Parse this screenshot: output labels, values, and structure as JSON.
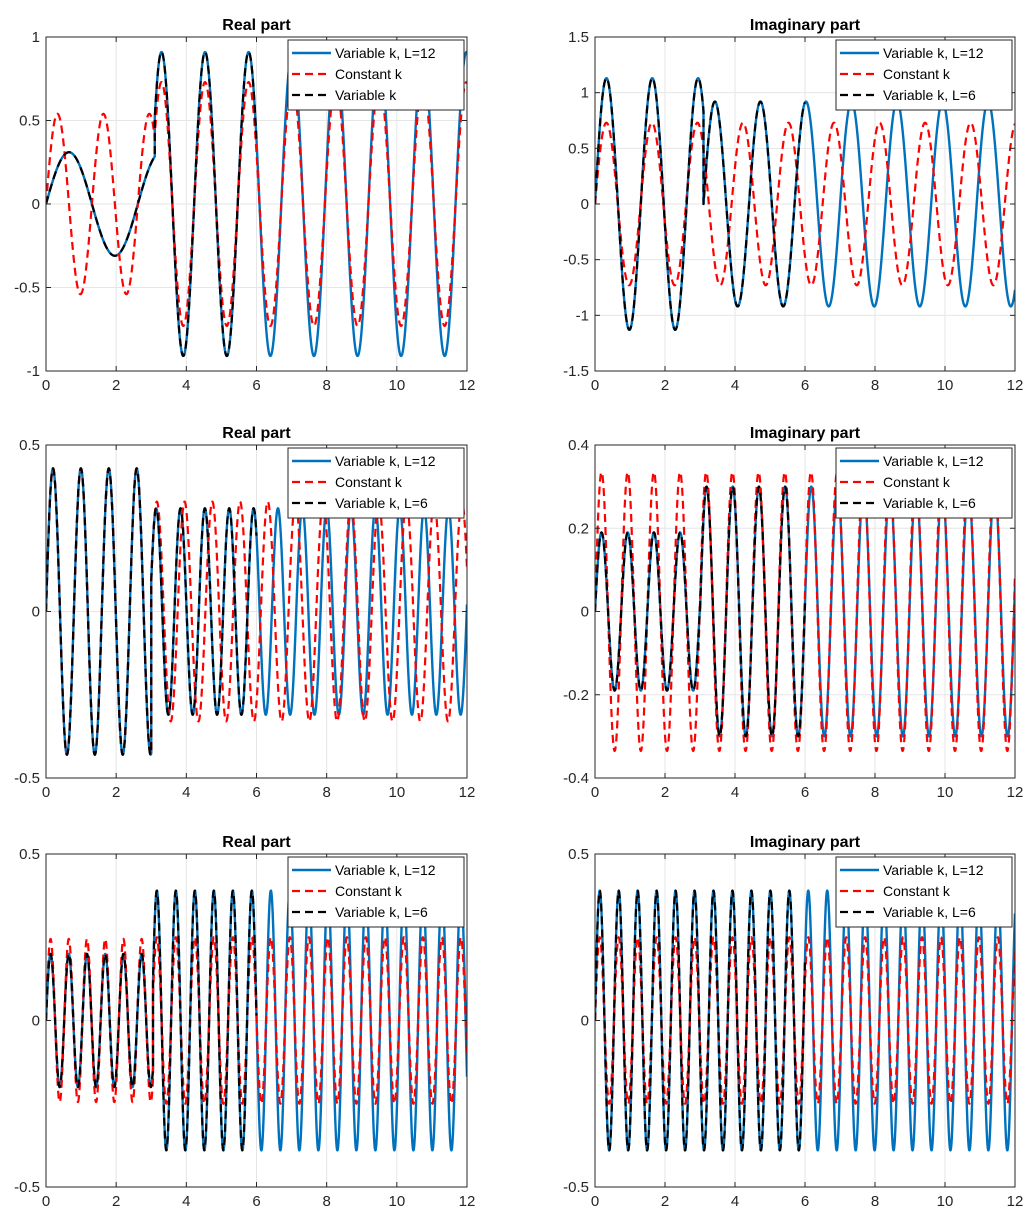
{
  "chart_data": [
    {
      "type": "line",
      "title": "Real part",
      "xlabel": "",
      "ylabel": "",
      "xlim": [
        0,
        12
      ],
      "ylim": [
        -1,
        1
      ],
      "xticks": [
        "0",
        "2",
        "4",
        "6",
        "8",
        "10",
        "12"
      ],
      "yticks": [
        "-1",
        "-0.5",
        "0",
        "0.5",
        "1"
      ],
      "ytick_values": [
        -1,
        -0.5,
        0,
        0.5,
        1
      ],
      "grid": true,
      "legend_position": "top-right",
      "series": [
        {
          "name": "Variable k, L=12",
          "color": "#0072BD",
          "style": "solid",
          "segments": [
            [
              0,
              3.1,
              0.31,
              2.4,
              0
            ],
            [
              3.1,
              12,
              0.91,
              5.06,
              0.6
            ]
          ]
        },
        {
          "name": "Constant k",
          "color": "#FF0000",
          "style": "dashed",
          "segments": [
            [
              0,
              3.1,
              0.54,
              4.8,
              0
            ],
            [
              3.1,
              12,
              0.73,
              5.06,
              0.6
            ]
          ]
        },
        {
          "name": "Variable k",
          "color": "#000000",
          "style": "dashed",
          "segments": [
            [
              0,
              3.1,
              0.31,
              2.4,
              0
            ],
            [
              3.1,
              6,
              0.91,
              5.06,
              0.6
            ]
          ]
        }
      ]
    },
    {
      "type": "line",
      "title": "Imaginary part",
      "xlabel": "",
      "ylabel": "",
      "xlim": [
        0,
        12
      ],
      "ylim": [
        -1.5,
        1.5
      ],
      "xticks": [
        "0",
        "2",
        "4",
        "6",
        "8",
        "10",
        "12"
      ],
      "yticks": [
        "-1.5",
        "-1",
        "-0.5",
        "0",
        "0.5",
        "1",
        "1.5"
      ],
      "ytick_values": [
        -1.5,
        -1,
        -0.5,
        0,
        0.5,
        1,
        1.5
      ],
      "grid": true,
      "legend_position": "top-right",
      "series": [
        {
          "name": "Variable k, L=12",
          "color": "#0072BD",
          "style": "solid",
          "segments": [
            [
              0,
              3.1,
              1.13,
              4.8,
              0
            ],
            [
              3.1,
              12,
              0.92,
              4.83,
              0
            ]
          ]
        },
        {
          "name": "Constant k",
          "color": "#FF0000",
          "style": "dashed",
          "segments": [
            [
              0,
              12,
              0.73,
              4.83,
              0
            ]
          ]
        },
        {
          "name": "Variable k, L=6",
          "color": "#000000",
          "style": "dashed",
          "segments": [
            [
              0,
              3.1,
              1.13,
              4.8,
              0
            ],
            [
              3.1,
              6,
              0.92,
              4.83,
              0
            ]
          ]
        }
      ]
    },
    {
      "type": "line",
      "title": "Real part",
      "xlabel": "",
      "ylabel": "",
      "xlim": [
        0,
        12
      ],
      "ylim": [
        -0.5,
        0.5
      ],
      "xticks": [
        "0",
        "2",
        "4",
        "6",
        "8",
        "10",
        "12"
      ],
      "yticks": [
        "-0.5",
        "0",
        "0.5"
      ],
      "ytick_values": [
        -0.5,
        0,
        0.5
      ],
      "grid": true,
      "legend_position": "top-right",
      "series": [
        {
          "name": "Variable k, L=12",
          "color": "#0072BD",
          "style": "solid",
          "segments": [
            [
              0,
              3.0,
              0.43,
              7.9,
              0
            ],
            [
              3.0,
              12,
              0.31,
              9.05,
              0.3
            ]
          ]
        },
        {
          "name": "Constant k",
          "color": "#FF0000",
          "style": "dashed",
          "segments": [
            [
              0,
              3.0,
              0.43,
              7.9,
              0
            ],
            [
              3.0,
              12,
              0.33,
              7.95,
              0.3
            ]
          ]
        },
        {
          "name": "Variable k, L=6",
          "color": "#000000",
          "style": "dashed",
          "segments": [
            [
              0,
              3.0,
              0.43,
              7.9,
              0
            ],
            [
              3.0,
              6,
              0.31,
              9.05,
              0.3
            ]
          ]
        }
      ]
    },
    {
      "type": "line",
      "title": "Imaginary part",
      "xlabel": "",
      "ylabel": "",
      "xlim": [
        0,
        12
      ],
      "ylim": [
        -0.4,
        0.4
      ],
      "xticks": [
        "0",
        "2",
        "4",
        "6",
        "8",
        "10",
        "12"
      ],
      "yticks": [
        "-0.4",
        "-0.2",
        "0",
        "0.2",
        "0.4"
      ],
      "ytick_values": [
        -0.4,
        -0.2,
        0,
        0.2,
        0.4
      ],
      "grid": true,
      "legend_position": "top-right",
      "series": [
        {
          "name": "Variable k, L=12",
          "color": "#0072BD",
          "style": "solid",
          "segments": [
            [
              0,
              3.0,
              0.19,
              8.4,
              0
            ],
            [
              3.0,
              12,
              0.3,
              8.4,
              0
            ]
          ]
        },
        {
          "name": "Constant k",
          "color": "#FF0000",
          "style": "dashed",
          "segments": [
            [
              0,
              12,
              0.335,
              8.4,
              0
            ]
          ]
        },
        {
          "name": "Variable k, L=6",
          "color": "#000000",
          "style": "dashed",
          "segments": [
            [
              0,
              3.0,
              0.19,
              8.4,
              0
            ],
            [
              3.0,
              6,
              0.3,
              8.4,
              0
            ]
          ]
        }
      ]
    },
    {
      "type": "line",
      "title": "Real part",
      "xlabel": "",
      "ylabel": "",
      "xlim": [
        0,
        12
      ],
      "ylim": [
        -0.5,
        0.5
      ],
      "xticks": [
        "0",
        "2",
        "4",
        "6",
        "8",
        "10",
        "12"
      ],
      "yticks": [
        "-0.5",
        "0",
        "0.5"
      ],
      "ytick_values": [
        -0.5,
        0,
        0.5
      ],
      "grid": true,
      "legend_position": "top-right",
      "series": [
        {
          "name": "Variable k, L=12",
          "color": "#0072BD",
          "style": "solid",
          "segments": [
            [
              0,
              3.05,
              0.2,
              12.1,
              0
            ],
            [
              3.05,
              12,
              0.39,
              11.6,
              0.3
            ]
          ]
        },
        {
          "name": "Constant k",
          "color": "#FF0000",
          "style": "dashed",
          "segments": [
            [
              0,
              3.05,
              0.245,
              12.1,
              0
            ],
            [
              3.05,
              12,
              0.25,
              11.6,
              0.3
            ]
          ]
        },
        {
          "name": "Variable k, L=6",
          "color": "#000000",
          "style": "dashed",
          "segments": [
            [
              0,
              3.05,
              0.2,
              12.1,
              0
            ],
            [
              3.05,
              6,
              0.39,
              11.6,
              0.3
            ]
          ]
        }
      ]
    },
    {
      "type": "line",
      "title": "Imaginary part",
      "xlabel": "",
      "ylabel": "",
      "xlim": [
        0,
        12
      ],
      "ylim": [
        -0.5,
        0.5
      ],
      "xticks": [
        "0",
        "2",
        "4",
        "6",
        "8",
        "10",
        "12"
      ],
      "yticks": [
        "-0.5",
        "0",
        "0.5"
      ],
      "ytick_values": [
        -0.5,
        0,
        0.5
      ],
      "grid": true,
      "legend_position": "top-right",
      "series": [
        {
          "name": "Variable k, L=12",
          "color": "#0072BD",
          "style": "solid",
          "segments": [
            [
              0,
              12,
              0.39,
              11.6,
              0
            ]
          ]
        },
        {
          "name": "Constant k",
          "color": "#FF0000",
          "style": "dashed",
          "segments": [
            [
              0,
              12,
              0.25,
              11.6,
              0
            ]
          ]
        },
        {
          "name": "Variable k, L=6",
          "color": "#000000",
          "style": "dashed",
          "segments": [
            [
              0,
              6,
              0.39,
              11.6,
              0
            ]
          ]
        }
      ]
    }
  ]
}
